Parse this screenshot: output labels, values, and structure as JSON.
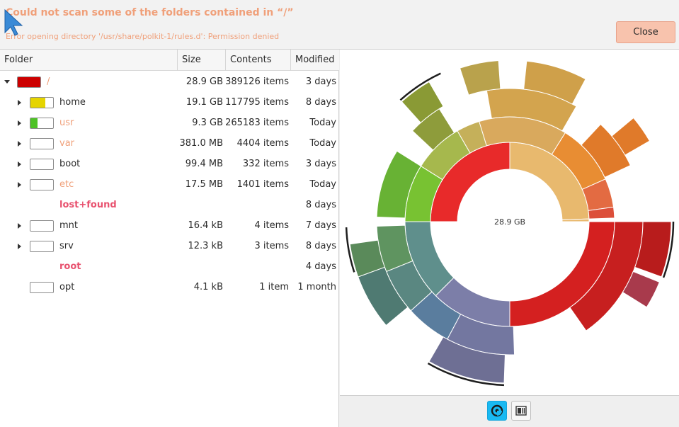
{
  "infobar": {
    "title": "Could not scan some of the folders contained in “/”",
    "detail": "Error opening directory '/usr/share/polkit-1/rules.d': Permission denied",
    "close_label": "Close"
  },
  "columns": {
    "folder": "Folder",
    "size": "Size",
    "contents": "Contents",
    "modified": "Modified"
  },
  "rows": [
    {
      "name": "/",
      "size": "28.9 GB",
      "contents": "389126 items",
      "modified": "3 days",
      "fill_percent": 100,
      "fill_color": "#cc0000"
    },
    {
      "name": "home",
      "size": "19.1 GB",
      "contents": "117795 items",
      "modified": "8 days",
      "fill_percent": 66,
      "fill_color": "#e5d400"
    },
    {
      "name": "usr",
      "size": "9.3 GB",
      "contents": "265183 items",
      "modified": "Today",
      "fill_percent": 32,
      "fill_color": "#4ec226"
    },
    {
      "name": "var",
      "size": "381.0 MB",
      "contents": "4404 items",
      "modified": "Today",
      "fill_percent": 0
    },
    {
      "name": "boot",
      "size": "99.4 MB",
      "contents": "332 items",
      "modified": "3 days",
      "fill_percent": 0
    },
    {
      "name": "etc",
      "size": "17.5 MB",
      "contents": "1401 items",
      "modified": "Today",
      "fill_percent": 0
    },
    {
      "name": "lost+found",
      "size": "",
      "contents": "",
      "modified": "8 days"
    },
    {
      "name": "mnt",
      "size": "16.4 kB",
      "contents": "4 items",
      "modified": "7 days",
      "fill_percent": 0
    },
    {
      "name": "srv",
      "size": "12.3 kB",
      "contents": "3 items",
      "modified": "8 days",
      "fill_percent": 0
    },
    {
      "name": "root",
      "size": "",
      "contents": "",
      "modified": "4 days"
    },
    {
      "name": "opt",
      "size": "4.1 kB",
      "contents": "1 item",
      "modified": "1 month",
      "fill_percent": 0
    }
  ],
  "chart": {
    "center_label": "28.9 GB"
  },
  "view_buttons": [
    {
      "icon": "rings-chart-icon",
      "active": true
    },
    {
      "icon": "treemap-chart-icon",
      "active": false
    }
  ]
}
